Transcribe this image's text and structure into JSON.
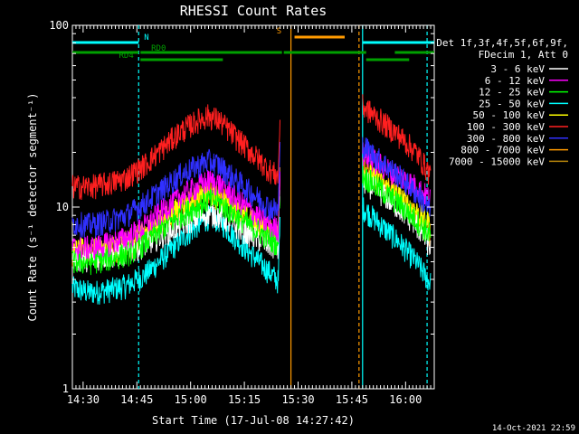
{
  "chart_data": {
    "type": "line",
    "title": "RHESSI Count Rates",
    "xlabel": "Start Time (17-Jul-08 14:27:42)",
    "ylabel": "Count Rate (s⁻¹ detector segment⁻¹)",
    "y_scale": "log",
    "ylim": [
      1,
      100
    ],
    "xlim_minutes_after_1427": [
      0,
      101
    ],
    "x_ticks": [
      {
        "label": "14:30",
        "minute": 3
      },
      {
        "label": "14:45",
        "minute": 18
      },
      {
        "label": "15:00",
        "minute": 33
      },
      {
        "label": "15:15",
        "minute": 48
      },
      {
        "label": "15:30",
        "minute": 63
      },
      {
        "label": "15:45",
        "minute": 78
      },
      {
        "label": "16:00",
        "minute": 93
      }
    ],
    "y_ticks": [
      {
        "label": "1",
        "value": 1
      },
      {
        "label": "10",
        "value": 10
      },
      {
        "label": "100",
        "value": 100
      }
    ],
    "legend_header": [
      "Det 1f,3f,4f,5f,6f,9f,",
      "FDecim 1, Att 0"
    ],
    "series": [
      {
        "name": "3 - 6 keV",
        "color": "#ffffff",
        "values": [
          5.2,
          5.2,
          5.4,
          5.6,
          6.2,
          7.0,
          8.0,
          8.8,
          9.3,
          9.0,
          8.0,
          7.0,
          6.2,
          5.8,
          14.0,
          12.0,
          10.0,
          8.0,
          6.0
        ]
      },
      {
        "name": "6 - 12 keV",
        "color": "#ff00ff",
        "values": [
          6.0,
          6.0,
          6.3,
          6.8,
          7.8,
          9.5,
          11.5,
          13.0,
          14.0,
          13.5,
          11.5,
          9.5,
          8.0,
          7.5,
          20.0,
          17.0,
          15.0,
          13.0,
          11.0
        ]
      },
      {
        "name": "12 - 25 keV",
        "color": "#00ff00",
        "values": [
          5.0,
          5.0,
          5.2,
          5.5,
          6.3,
          7.6,
          9.0,
          10.2,
          11.0,
          10.6,
          9.2,
          7.8,
          6.7,
          6.2,
          15.0,
          12.5,
          10.5,
          8.5,
          7.0
        ]
      },
      {
        "name": "25 - 50 keV",
        "color": "#00ffff",
        "values": [
          3.6,
          3.4,
          3.5,
          3.7,
          4.2,
          5.2,
          6.6,
          8.0,
          8.8,
          8.5,
          7.0,
          5.5,
          4.4,
          3.8,
          10.0,
          8.0,
          6.5,
          5.0,
          3.8
        ]
      },
      {
        "name": "50 - 100 keV",
        "color": "#ffff00",
        "values": [
          5.8,
          5.8,
          6.0,
          6.4,
          7.2,
          8.5,
          10.0,
          11.0,
          11.8,
          11.2,
          9.8,
          8.4,
          7.4,
          7.0,
          16.0,
          13.5,
          11.5,
          9.5,
          8.0
        ]
      },
      {
        "name": "100 - 300 keV",
        "color": "#ff2020",
        "values": [
          13.0,
          13.0,
          13.5,
          14.5,
          17.0,
          21.0,
          26.0,
          30.0,
          32.0,
          30.0,
          25.0,
          20.0,
          16.0,
          14.5,
          36.0,
          30.0,
          25.0,
          20.0,
          15.0
        ]
      },
      {
        "name": "300 - 800 keV",
        "color": "#3030ff",
        "values": [
          8.2,
          8.0,
          8.4,
          9.0,
          10.5,
          12.5,
          15.0,
          17.0,
          18.0,
          17.0,
          14.5,
          12.0,
          10.0,
          9.5,
          22.0,
          18.0,
          15.0,
          12.0,
          9.5
        ]
      },
      {
        "name": "800 - 7000 keV",
        "color": "#ff9a00",
        "values": [
          5.5,
          5.5,
          5.7,
          6.0,
          6.8,
          8.2,
          10.0,
          11.4,
          12.2,
          11.6,
          10.0,
          8.4,
          7.2,
          6.8,
          17.0,
          14.0,
          11.5,
          9.0,
          7.0
        ]
      },
      {
        "name": "7000 - 15000 keV",
        "color": "#b8860b",
        "values": []
      }
    ],
    "series_x_minutes": [
      0,
      5,
      10,
      15,
      20,
      25,
      30,
      35,
      38,
      41,
      45,
      50,
      55,
      58,
      81,
      86,
      91,
      96,
      100
    ],
    "gap_minutes": [
      60,
      81
    ],
    "flag_bars": [
      {
        "label": "N",
        "color": "#00ffff",
        "segments": [
          [
            0,
            18.5
          ],
          [
            81,
            101
          ]
        ]
      },
      {
        "label": "S",
        "color": "#ff9a00",
        "segments": [
          [
            62,
            76
          ]
        ]
      },
      {
        "label": "RD0",
        "color": "#00a000",
        "segments": [
          [
            0,
            18.5
          ],
          [
            19,
            58.5
          ],
          [
            59,
            82
          ],
          [
            90,
            101
          ]
        ]
      },
      {
        "label": "RD4",
        "color": "#00a000",
        "segments": [
          [
            19,
            42
          ],
          [
            82,
            94
          ]
        ]
      }
    ],
    "vlines": [
      {
        "minute": 18.5,
        "color": "#00ffff",
        "style": "dashed"
      },
      {
        "minute": 61,
        "color": "#ff9a00",
        "style": "solid"
      },
      {
        "minute": 80,
        "color": "#ff9a00",
        "style": "dashed"
      },
      {
        "minute": 81,
        "color": "#00ffff",
        "style": "solid"
      },
      {
        "minute": 99,
        "color": "#00ffff",
        "style": "dashed"
      }
    ],
    "grid": false,
    "legend_position": "right"
  },
  "timestamp": "14-Oct-2021 22:59"
}
